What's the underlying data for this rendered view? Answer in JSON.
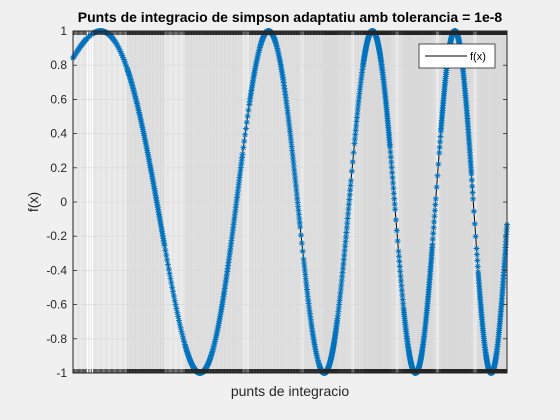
{
  "chart_data": {
    "type": "line",
    "title": "Punts de integracio de simpson adaptatiu amb tolerancia = 1e-8",
    "xlabel": "punts de integracio",
    "ylabel": "f(x)",
    "ylim": [
      -1,
      1
    ],
    "yticks": [
      "-1",
      "-0.8",
      "-0.6",
      "-0.4",
      "-0.2",
      "0",
      "0.2",
      "0.4",
      "0.6",
      "0.8",
      "1"
    ],
    "x_tick_labels": "none",
    "grid": true,
    "legend": {
      "entries": [
        "f(x)"
      ],
      "placement": "top-right"
    },
    "series": [
      {
        "name": "f(x)",
        "line_color": "#000000",
        "marker_color": "#0072bd",
        "marker": "asterisk",
        "function": "sin(x^2)",
        "x_domain": [
          1,
          5
        ],
        "points_description": "adaptive Simpson quadrature nodes, denser where f(x) oscillates faster"
      }
    ]
  },
  "colors": {
    "figure_background": "#f0f0f0",
    "axes_background": "#ffffff",
    "grid": "#d9d9d9",
    "marker": "#0072bd"
  }
}
